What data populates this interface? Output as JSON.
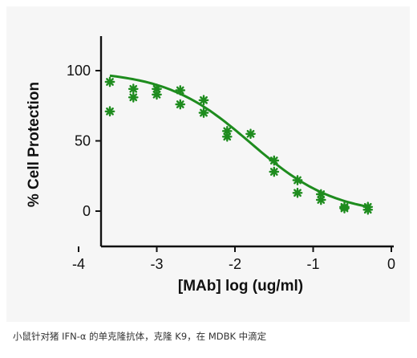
{
  "caption": "小鼠针对猪 IFN-α 的单克隆抗体，克隆 K9，在 MDBK 中滴定",
  "colors": {
    "series": "#1e8c1e",
    "axis": "#111111",
    "panel": "#f6f6f6"
  },
  "chart_data": {
    "type": "scatter",
    "title": "",
    "xlabel": "[MAb] log (ug/ml)",
    "ylabel": "% Cell Protection",
    "xlim": [
      -4,
      0
    ],
    "ylim": [
      -20,
      125
    ],
    "xticks": [
      -4,
      -3,
      -2,
      -1,
      0
    ],
    "yticks": [
      0,
      50,
      100
    ],
    "xtick_labels": [
      "-4",
      "-3",
      "-2",
      "-1",
      "0"
    ],
    "ytick_labels": [
      "0",
      "50",
      "100"
    ],
    "grid": false,
    "legend": "none",
    "marker": "asterisk",
    "series": [
      {
        "points": [
          [
            -3.6,
            92
          ],
          [
            -3.6,
            71
          ],
          [
            -3.3,
            87
          ],
          [
            -3.3,
            81
          ],
          [
            -3.0,
            87
          ],
          [
            -3.0,
            83
          ],
          [
            -2.7,
            86
          ],
          [
            -2.7,
            76
          ],
          [
            -2.4,
            79
          ],
          [
            -2.4,
            70
          ],
          [
            -2.1,
            57
          ],
          [
            -2.1,
            53
          ],
          [
            -1.8,
            55
          ],
          [
            -1.5,
            36
          ],
          [
            -1.5,
            28
          ],
          [
            -1.2,
            22
          ],
          [
            -1.2,
            13
          ],
          [
            -0.9,
            12
          ],
          [
            -0.9,
            8
          ],
          [
            -0.6,
            3
          ],
          [
            -0.6,
            2
          ],
          [
            -0.3,
            3
          ],
          [
            -0.3,
            1
          ]
        ],
        "fit": {
          "model": "four-parameter logistic",
          "x_range": [
            -3.6,
            -0.3
          ],
          "top": 100,
          "bottom": -3,
          "log_ec50": -1.8,
          "hill_slope": 0.8
        }
      }
    ]
  }
}
